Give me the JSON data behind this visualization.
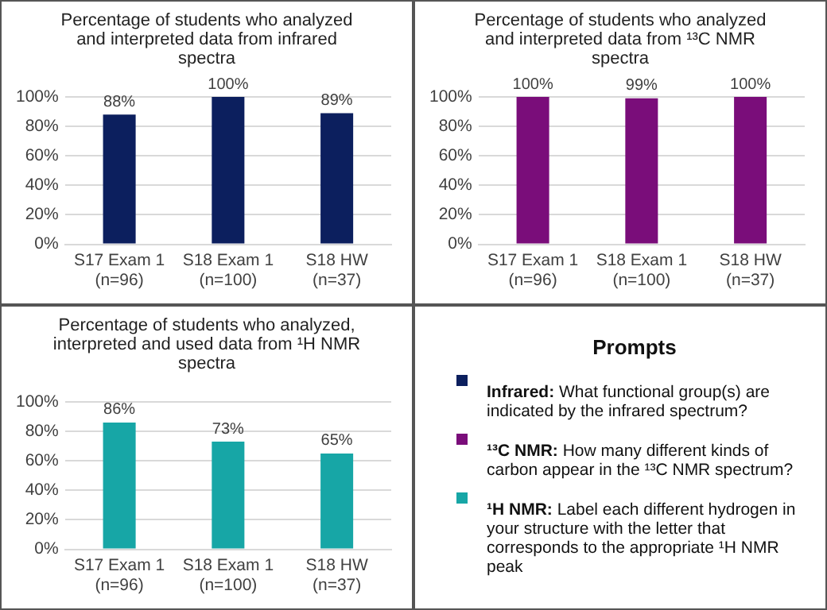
{
  "chart_data": [
    {
      "type": "bar",
      "title": "Percentage of students who analyzed and interpreted data from infrared spectra",
      "categories": [
        "S17 Exam 1\n(n=96)",
        "S18 Exam 1\n(n=100)",
        "S18 HW\n(n=37)"
      ],
      "values": [
        88,
        100,
        89
      ],
      "color": "#0c1f5e",
      "ylim": [
        0,
        100
      ],
      "yticks": [
        {
          "value": 0,
          "label": "0%"
        },
        {
          "value": 20,
          "label": "20%"
        },
        {
          "value": 40,
          "label": "40%"
        },
        {
          "value": 60,
          "label": "60%"
        },
        {
          "value": 80,
          "label": "80%"
        },
        {
          "value": 100,
          "label": "100%"
        }
      ],
      "grid": "y",
      "value_labels": [
        "88%",
        "100%",
        "89%"
      ]
    },
    {
      "type": "bar",
      "title": "Percentage of students who analyzed and interpreted data from ¹³C NMR spectra",
      "categories": [
        "S17 Exam 1\n(n=96)",
        "S18 Exam 1\n(n=100)",
        "S18 HW\n(n=37)"
      ],
      "values": [
        100,
        99,
        100
      ],
      "color": "#7a0d7a",
      "ylim": [
        0,
        100
      ],
      "yticks": [
        {
          "value": 0,
          "label": "0%"
        },
        {
          "value": 20,
          "label": "20%"
        },
        {
          "value": 40,
          "label": "40%"
        },
        {
          "value": 60,
          "label": "60%"
        },
        {
          "value": 80,
          "label": "80%"
        },
        {
          "value": 100,
          "label": "100%"
        }
      ],
      "grid": "y",
      "value_labels": [
        "100%",
        "99%",
        "100%"
      ]
    },
    {
      "type": "bar",
      "title": "Percentage of students who analyzed, interpreted and used data from ¹H NMR spectra",
      "categories": [
        "S17 Exam 1\n(n=96)",
        "S18 Exam 1\n(n=100)",
        "S18 HW\n(n=37)"
      ],
      "values": [
        86,
        73,
        65
      ],
      "color": "#17a6a6",
      "ylim": [
        0,
        100
      ],
      "yticks": [
        {
          "value": 0,
          "label": "0%"
        },
        {
          "value": 20,
          "label": "20%"
        },
        {
          "value": 40,
          "label": "40%"
        },
        {
          "value": 60,
          "label": "60%"
        },
        {
          "value": 80,
          "label": "80%"
        },
        {
          "value": 100,
          "label": "100%"
        }
      ],
      "grid": "y",
      "value_labels": [
        "86%",
        "73%",
        "65%"
      ]
    },
    {
      "type": "other",
      "title": "Prompts",
      "annotations": [
        "Infrared: What functional group(s) are indicated by the infrared spectrum?",
        "¹³C NMR: How many different kinds of carbon appear in the ¹³C NMR spectrum?",
        "¹H NMR: Label each different hydrogen in your structure with the letter that corresponds to the appropriate ¹H NMR peak"
      ]
    }
  ]
}
